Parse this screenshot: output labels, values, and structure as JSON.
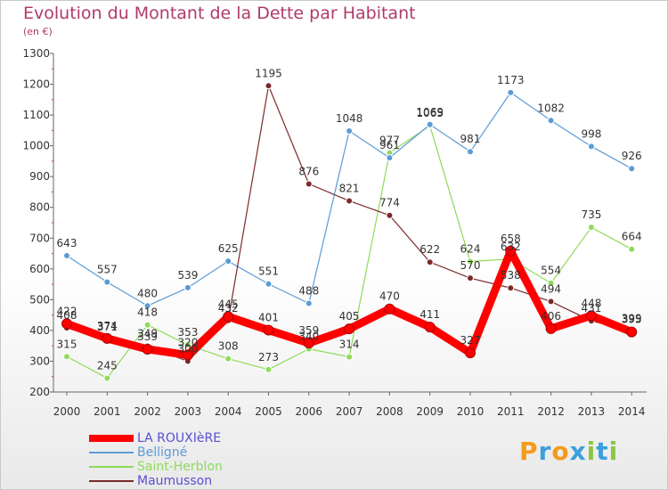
{
  "chart_data": {
    "type": "line",
    "title": "Evolution du Montant de la Dette par Habitant",
    "subtitle": "(en €)",
    "x": [
      "2000",
      "2001",
      "2002",
      "2003",
      "2004",
      "2005",
      "2006",
      "2007",
      "2008",
      "2009",
      "2010",
      "2011",
      "2012",
      "2013",
      "2014"
    ],
    "ylim": [
      200,
      1300
    ],
    "yticks": [
      200,
      300,
      400,
      500,
      600,
      700,
      800,
      900,
      1000,
      1100,
      1200,
      1300
    ],
    "grid": false,
    "legend_position": "bottom-left",
    "series": [
      {
        "name": "LA ROUXIèRE",
        "color": "#ff0000",
        "values": [
          422,
          374,
          339,
          320,
          445,
          401,
          359,
          405,
          470,
          411,
          327,
          658,
          406,
          448,
          395
        ]
      },
      {
        "name": "Belligné",
        "color": "#5b9bd5",
        "values": [
          643,
          557,
          480,
          539,
          625,
          551,
          488,
          1048,
          961,
          1069,
          981,
          1173,
          1082,
          998,
          926
        ]
      },
      {
        "name": "Saint-Herblon",
        "color": "#8edb5a",
        "values": [
          315,
          245,
          418,
          353,
          308,
          273,
          340,
          314,
          977,
          1065,
          624,
          632,
          554,
          735,
          664
        ]
      },
      {
        "name": "Maumusson",
        "color": "#7b2a2a",
        "values": [
          408,
          371,
          349,
          300,
          432,
          1195,
          876,
          821,
          774,
          622,
          570,
          538,
          494,
          431,
          399
        ]
      }
    ]
  },
  "logo": {
    "letters": [
      "P",
      "r",
      "o",
      "x",
      "i",
      "t",
      "i"
    ],
    "colors": [
      "#f59a1c",
      "#3aa0dc",
      "#f59a1c",
      "#3aa0dc",
      "#8cc63f",
      "#3aa0dc",
      "#8cc63f"
    ]
  }
}
